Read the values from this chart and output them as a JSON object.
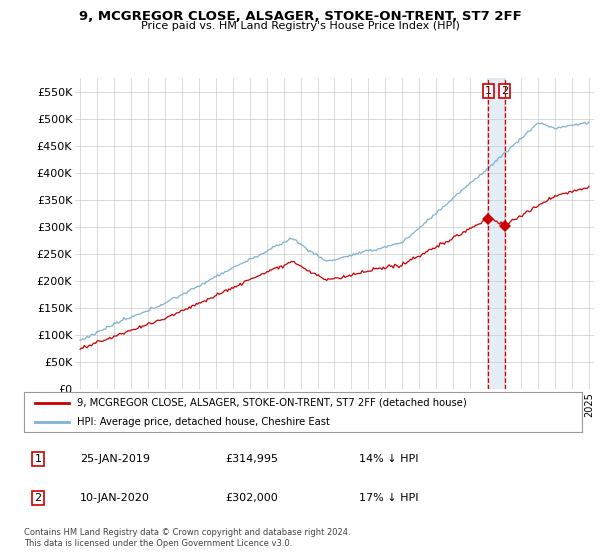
{
  "title": "9, MCGREGOR CLOSE, ALSAGER, STOKE-ON-TRENT, ST7 2FF",
  "subtitle": "Price paid vs. HM Land Registry's House Price Index (HPI)",
  "legend_line1": "9, MCGREGOR CLOSE, ALSAGER, STOKE-ON-TRENT, ST7 2FF (detached house)",
  "legend_line2": "HPI: Average price, detached house, Cheshire East",
  "annotation1_label": "1",
  "annotation1_date": "25-JAN-2019",
  "annotation1_price": "£314,995",
  "annotation1_hpi": "14% ↓ HPI",
  "annotation2_label": "2",
  "annotation2_date": "10-JAN-2020",
  "annotation2_price": "£302,000",
  "annotation2_hpi": "17% ↓ HPI",
  "footer": "Contains HM Land Registry data © Crown copyright and database right 2024.\nThis data is licensed under the Open Government Licence v3.0.",
  "ylim": [
    0,
    575000
  ],
  "yticks": [
    0,
    50000,
    100000,
    150000,
    200000,
    250000,
    300000,
    350000,
    400000,
    450000,
    500000,
    550000
  ],
  "ytick_labels": [
    "£0",
    "£50K",
    "£100K",
    "£150K",
    "£200K",
    "£250K",
    "£300K",
    "£350K",
    "£400K",
    "£450K",
    "£500K",
    "£550K"
  ],
  "hpi_color": "#7fb3d3",
  "hpi_fill_color": "#c8dff0",
  "price_color": "#cc0000",
  "annotation_color": "#cc0000",
  "sale1_year": 2019.07,
  "sale1_value": 314995,
  "sale2_year": 2020.03,
  "sale2_value": 302000,
  "background_color": "#ffffff",
  "grid_color": "#cccccc"
}
